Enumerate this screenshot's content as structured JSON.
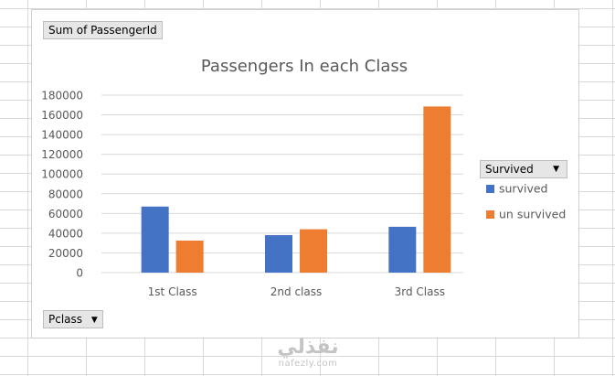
{
  "pivot": {
    "value_field": "Sum of PassengerId",
    "legend_field": "Survived",
    "axis_field": "Pclass"
  },
  "watermark": {
    "arabic": "نفذلي",
    "latin": "nafezly.com"
  },
  "colors": {
    "survived": "#4472c4",
    "un_survived": "#ed7d31",
    "grid": "#d9d9d9",
    "text": "#595959"
  },
  "icons": {
    "dropdown": "triangle-down-icon"
  },
  "chart_data": {
    "type": "bar",
    "title": "Passengers In each Class",
    "categories": [
      "1st Class",
      "2nd class",
      "3rd Class"
    ],
    "series": [
      {
        "name": "survived",
        "values": [
          67000,
          38000,
          46500
        ],
        "color": "#4472c4"
      },
      {
        "name": "un survived",
        "values": [
          32500,
          44000,
          168500
        ],
        "color": "#ed7d31"
      }
    ],
    "ylim": [
      0,
      180000
    ],
    "yticks": [
      0,
      20000,
      40000,
      60000,
      80000,
      100000,
      120000,
      140000,
      160000,
      180000
    ],
    "ytick_labels": [
      "0",
      "20000",
      "40000",
      "60000",
      "80000",
      "100000",
      "120000",
      "140000",
      "160000",
      "180000"
    ],
    "grid": true,
    "legend_position": "right",
    "xlabel": "",
    "ylabel": ""
  }
}
